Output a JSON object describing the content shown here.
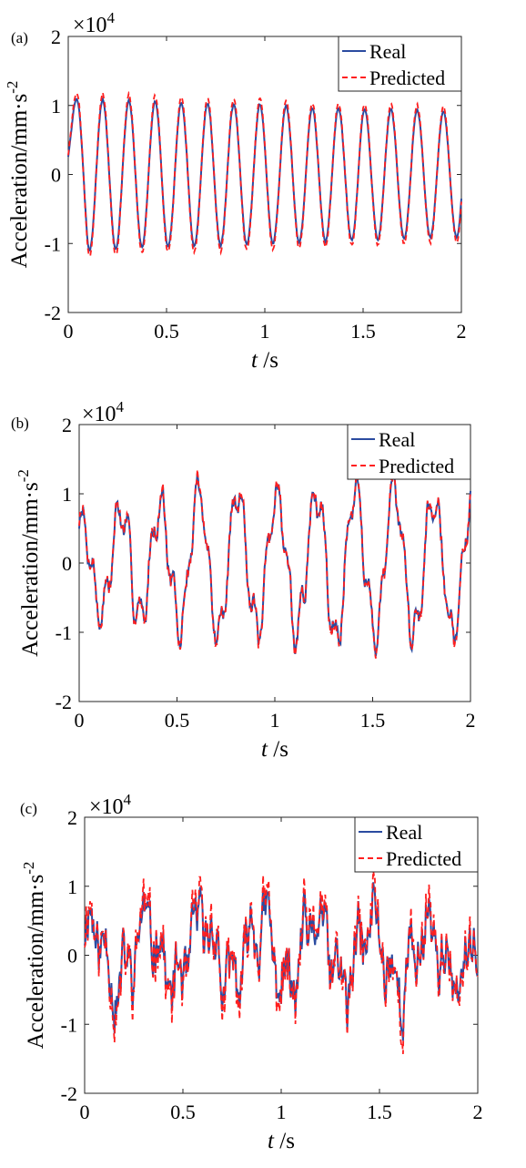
{
  "colors": {
    "real": "#2b4ba0",
    "predicted": "#ff1f1f"
  },
  "chart_data": [
    {
      "type": "line",
      "panel_label": "(a)",
      "multiplier": "×10",
      "multiplier_exp": "4",
      "ylabel": "Acceleration/mm·s",
      "ylabel_exp": "-2",
      "xlabel_italic": "t",
      "xlabel_unit": " /s",
      "xlim": [
        0,
        2
      ],
      "ylim": [
        -2,
        2
      ],
      "xticks": [
        0,
        0.5,
        1,
        1.5,
        2
      ],
      "xtick_labels": [
        "0",
        "0.5",
        "1",
        "1.5",
        "2"
      ],
      "yticks": [
        2,
        1,
        0,
        -1,
        -2
      ],
      "ytick_labels": [
        "2",
        "1",
        "0",
        "-1",
        "-2"
      ],
      "legend": [
        "Real",
        "Predicted"
      ],
      "legend_position": "top-right",
      "signal_model": {
        "kind": "sine",
        "freq_hz": 7.5,
        "amplitude": [
          1.1,
          0.9
        ],
        "predicted_gain": 1.08,
        "noise": 0.05,
        "seed": 3
      },
      "series": [
        {
          "name": "Real",
          "style": "solid"
        },
        {
          "name": "Predicted",
          "style": "dashed"
        }
      ]
    },
    {
      "type": "line",
      "panel_label": "(b)",
      "multiplier": "×10",
      "multiplier_exp": "4",
      "ylabel": "Acceleration/mm·s",
      "ylabel_exp": "-2",
      "xlabel_italic": "t",
      "xlabel_unit": " /s",
      "xlim": [
        0,
        2
      ],
      "ylim": [
        -2,
        2
      ],
      "xticks": [
        0,
        0.5,
        1,
        1.5,
        2
      ],
      "xtick_labels": [
        "0",
        "0.5",
        "1",
        "1.5",
        "2"
      ],
      "yticks": [
        2,
        1,
        0,
        -1,
        -2
      ],
      "ytick_labels": [
        "2",
        "1",
        "0",
        "-1",
        "-2"
      ],
      "legend": [
        "Real",
        "Predicted"
      ],
      "legend_position": "top-right",
      "signal_model": {
        "kind": "modulated",
        "freq_hz": 5,
        "amplitude": [
          0.6,
          1.0
        ],
        "predicted_gain": 1.02,
        "noise": 0.12,
        "seed": 7
      },
      "series": [
        {
          "name": "Real",
          "style": "solid"
        },
        {
          "name": "Predicted",
          "style": "dashed"
        }
      ]
    },
    {
      "type": "line",
      "panel_label": "(c)",
      "multiplier": "×10",
      "multiplier_exp": "4",
      "ylabel": "Acceleration/mm·s",
      "ylabel_exp": "-2",
      "xlabel_italic": "t",
      "xlabel_unit": " /s",
      "xlim": [
        0,
        2
      ],
      "ylim": [
        -2,
        2
      ],
      "xticks": [
        0,
        0.5,
        1,
        1.5,
        2
      ],
      "xtick_labels": [
        "0",
        "0.5",
        "1",
        "1.5",
        "2"
      ],
      "yticks": [
        2,
        1,
        0,
        -1,
        -2
      ],
      "ytick_labels": [
        "2",
        "1",
        "0",
        "-1",
        "-2"
      ],
      "legend": [
        "Real",
        "Predicted"
      ],
      "legend_position": "top-right",
      "signal_model": {
        "kind": "noisy",
        "freq_hz": 3.5,
        "amplitude": [
          0.45,
          0.3
        ],
        "predicted_gain": 1.15,
        "noise": 0.35,
        "seed": 11
      },
      "series": [
        {
          "name": "Real",
          "style": "solid"
        },
        {
          "name": "Predicted",
          "style": "dashed"
        }
      ]
    }
  ]
}
